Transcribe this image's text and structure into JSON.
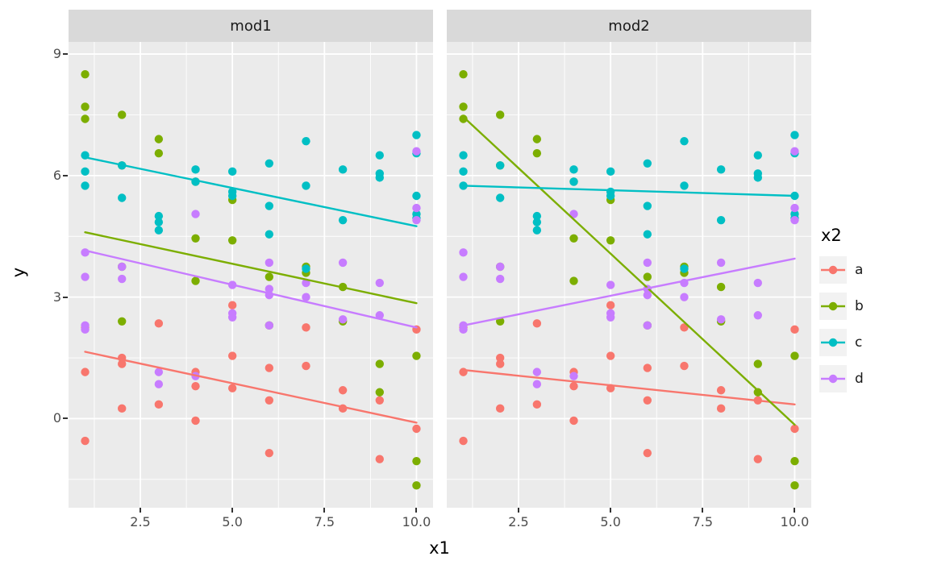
{
  "chart_data": {
    "type": "scatter",
    "xlabel": "x1",
    "ylabel": "y",
    "xlim": [
      0.55,
      10.45
    ],
    "ylim": [
      -2.2,
      9.3
    ],
    "x_ticks": [
      2.5,
      5.0,
      7.5,
      10.0
    ],
    "x_tick_labels": [
      "2.5",
      "5.0",
      "7.5",
      "10.0"
    ],
    "y_ticks": [
      0,
      3,
      6,
      9
    ],
    "y_tick_labels": [
      "0",
      "3",
      "6",
      "9"
    ],
    "x_minor": [
      1.25,
      3.75,
      6.25,
      8.75
    ],
    "y_minor": [
      -1.5,
      1.5,
      4.5,
      7.5
    ],
    "grid": true,
    "legend_position": "right",
    "legend_title": "x2",
    "panel_bg": "#EBEBEB",
    "strip_bg": "#D9D9D9",
    "grid_color": "#FFFFFF",
    "legend_key_bg": "#F2F2F2",
    "groups": [
      {
        "name": "a",
        "color": "#F8766D",
        "points": [
          [
            1,
            2.25
          ],
          [
            1,
            1.15
          ],
          [
            1,
            -0.55
          ],
          [
            2,
            1.5
          ],
          [
            2,
            1.35
          ],
          [
            2,
            0.25
          ],
          [
            3,
            2.35
          ],
          [
            3,
            0.35
          ],
          [
            4,
            1.15
          ],
          [
            4,
            0.8
          ],
          [
            4,
            -0.05
          ],
          [
            5,
            2.8
          ],
          [
            5,
            1.55
          ],
          [
            5,
            0.75
          ],
          [
            6,
            1.25
          ],
          [
            6,
            0.45
          ],
          [
            6,
            -0.85
          ],
          [
            7,
            2.25
          ],
          [
            7,
            1.3
          ],
          [
            8,
            0.7
          ],
          [
            8,
            0.25
          ],
          [
            9,
            0.45
          ],
          [
            9,
            -1.0
          ],
          [
            10,
            2.2
          ],
          [
            10,
            -0.25
          ]
        ]
      },
      {
        "name": "b",
        "color": "#7CAE00",
        "points": [
          [
            1,
            8.5
          ],
          [
            1,
            7.7
          ],
          [
            1,
            7.4
          ],
          [
            2,
            7.5
          ],
          [
            2,
            6.25
          ],
          [
            2,
            3.75
          ],
          [
            2,
            2.4
          ],
          [
            3,
            6.9
          ],
          [
            3,
            6.55
          ],
          [
            4,
            5.85
          ],
          [
            4,
            4.45
          ],
          [
            4,
            3.4
          ],
          [
            5,
            5.4
          ],
          [
            5,
            4.4
          ],
          [
            6,
            3.5
          ],
          [
            6,
            2.3
          ],
          [
            7,
            3.75
          ],
          [
            7,
            3.6
          ],
          [
            8,
            3.25
          ],
          [
            8,
            2.4
          ],
          [
            9,
            1.35
          ],
          [
            9,
            0.65
          ],
          [
            10,
            1.55
          ],
          [
            10,
            -1.05
          ],
          [
            10,
            -1.65
          ]
        ]
      },
      {
        "name": "c",
        "color": "#00BFC4",
        "points": [
          [
            1,
            6.5
          ],
          [
            1,
            6.1
          ],
          [
            1,
            5.75
          ],
          [
            2,
            6.25
          ],
          [
            2,
            5.45
          ],
          [
            3,
            5.0
          ],
          [
            3,
            4.85
          ],
          [
            3,
            4.65
          ],
          [
            4,
            6.15
          ],
          [
            4,
            5.85
          ],
          [
            5,
            6.1
          ],
          [
            5,
            5.6
          ],
          [
            5,
            5.5
          ],
          [
            6,
            6.3
          ],
          [
            6,
            5.25
          ],
          [
            6,
            4.55
          ],
          [
            7,
            6.85
          ],
          [
            7,
            5.75
          ],
          [
            7,
            3.7
          ],
          [
            8,
            6.15
          ],
          [
            8,
            4.9
          ],
          [
            9,
            6.5
          ],
          [
            9,
            6.05
          ],
          [
            9,
            5.95
          ],
          [
            10,
            7.0
          ],
          [
            10,
            6.55
          ],
          [
            10,
            5.5
          ],
          [
            10,
            5.05
          ],
          [
            10,
            4.95
          ]
        ]
      },
      {
        "name": "d",
        "color": "#C77CFF",
        "points": [
          [
            1,
            4.1
          ],
          [
            1,
            3.5
          ],
          [
            1,
            2.3
          ],
          [
            1,
            2.2
          ],
          [
            2,
            3.75
          ],
          [
            2,
            3.45
          ],
          [
            3,
            1.15
          ],
          [
            3,
            0.85
          ],
          [
            4,
            5.05
          ],
          [
            4,
            1.05
          ],
          [
            5,
            3.3
          ],
          [
            5,
            2.6
          ],
          [
            5,
            2.5
          ],
          [
            6,
            3.85
          ],
          [
            6,
            3.2
          ],
          [
            6,
            3.05
          ],
          [
            6,
            2.3
          ],
          [
            7,
            3.35
          ],
          [
            7,
            3.0
          ],
          [
            8,
            3.85
          ],
          [
            8,
            2.45
          ],
          [
            9,
            3.35
          ],
          [
            9,
            2.55
          ],
          [
            10,
            6.6
          ],
          [
            10,
            5.2
          ],
          [
            10,
            4.9
          ]
        ]
      }
    ],
    "facets": [
      {
        "label": "mod1",
        "lines": [
          {
            "group": "a",
            "start": [
              1,
              1.65
            ],
            "end": [
              10,
              -0.1
            ]
          },
          {
            "group": "b",
            "start": [
              1,
              4.6
            ],
            "end": [
              10,
              2.85
            ]
          },
          {
            "group": "c",
            "start": [
              1,
              6.45
            ],
            "end": [
              10,
              4.75
            ]
          },
          {
            "group": "d",
            "start": [
              1,
              4.15
            ],
            "end": [
              10,
              2.25
            ]
          }
        ]
      },
      {
        "label": "mod2",
        "lines": [
          {
            "group": "a",
            "start": [
              1,
              1.2
            ],
            "end": [
              10,
              0.35
            ]
          },
          {
            "group": "b",
            "start": [
              1,
              7.45
            ],
            "end": [
              10,
              -0.15
            ]
          },
          {
            "group": "c",
            "start": [
              1,
              5.75
            ],
            "end": [
              10,
              5.5
            ]
          },
          {
            "group": "d",
            "start": [
              1,
              2.3
            ],
            "end": [
              10,
              3.95
            ]
          }
        ]
      }
    ]
  }
}
